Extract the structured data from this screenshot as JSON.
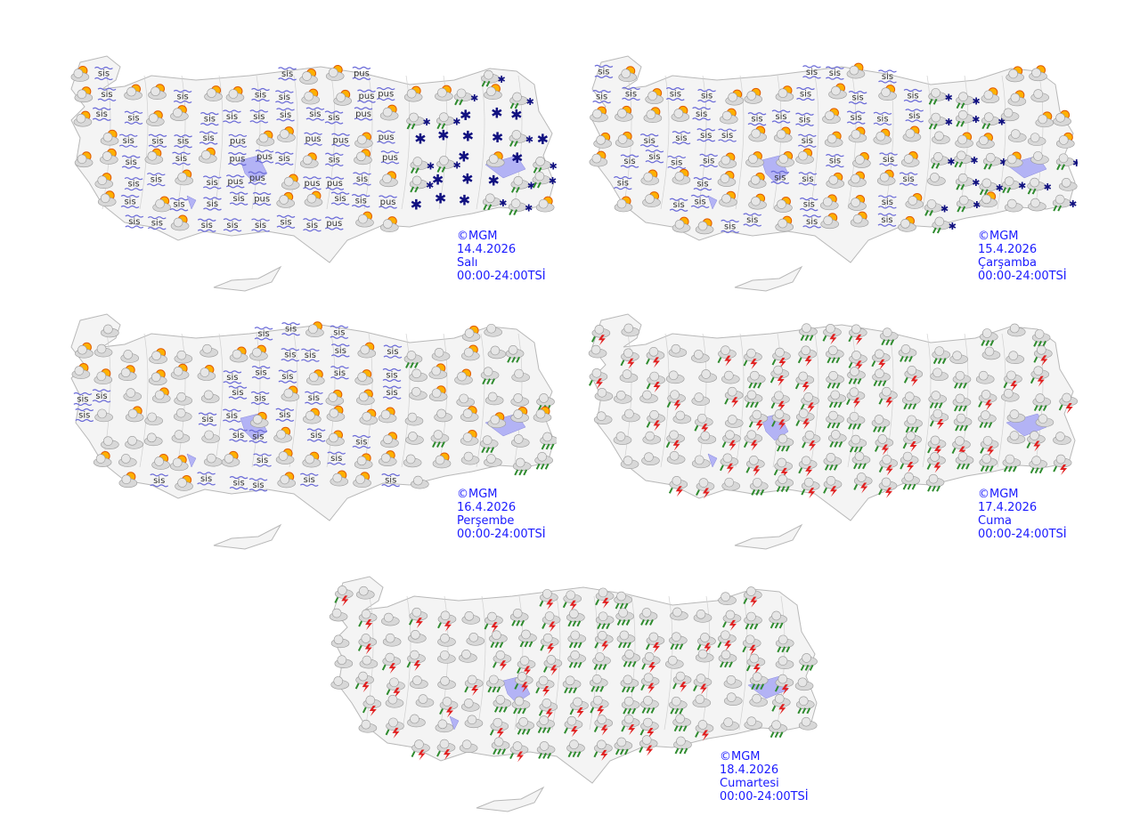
{
  "colors": {
    "land": "#f4f4f4",
    "border": "#b8b8b8",
    "lake": "#b3b3f5",
    "label": "#1a1aff",
    "sun": "#ffb000",
    "cloud": "#c8c8c8",
    "rain": "#2e8b2e",
    "lightning": "#e02020",
    "snow": "#101080",
    "fog": "#6a6ad8"
  },
  "maps": [
    {
      "copyright": "©MGM",
      "date": "14.4.2026",
      "day": "Salı",
      "period": "00:00-24:00TSİ",
      "regions": {
        "west": [
          "partly-cloudy",
          "fog"
        ],
        "central": [
          "fog",
          "mist",
          "partly-cloudy"
        ],
        "east": [
          "snow",
          "rain-snow",
          "partly-cloudy"
        ]
      },
      "fog_text": "sis",
      "mist_text": "pus"
    },
    {
      "copyright": "©MGM",
      "date": "15.4.2026",
      "day": "Çarşamba",
      "period": "00:00-24:00TSİ",
      "regions": {
        "west": [
          "partly-cloudy",
          "fog"
        ],
        "central": [
          "partly-cloudy",
          "fog"
        ],
        "east": [
          "partly-cloudy",
          "cloudy",
          "rain-snow"
        ]
      },
      "fog_text": "sis",
      "mist_text": "pus"
    },
    {
      "copyright": "©MGM",
      "date": "16.4.2026",
      "day": "Perşembe",
      "period": "00:00-24:00TSİ",
      "regions": {
        "west": [
          "partly-cloudy",
          "fog",
          "cloudy"
        ],
        "central": [
          "partly-cloudy",
          "fog"
        ],
        "east": [
          "partly-cloudy",
          "cloudy",
          "rain"
        ]
      },
      "fog_text": "sis",
      "mist_text": "pus"
    },
    {
      "copyright": "©MGM",
      "date": "17.4.2026",
      "day": "Cuma",
      "period": "00:00-24:00TSİ",
      "regions": {
        "west": [
          "thunderstorm",
          "cloudy"
        ],
        "central": [
          "thunderstorm",
          "rain"
        ],
        "east": [
          "rain",
          "cloudy",
          "thunderstorm"
        ]
      },
      "fog_text": "sis",
      "mist_text": "pus"
    },
    {
      "copyright": "©MGM",
      "date": "18.4.2026",
      "day": "Cumartesi",
      "period": "00:00-24:00TSİ",
      "regions": {
        "west": [
          "thunderstorm",
          "cloudy"
        ],
        "central": [
          "thunderstorm",
          "rain"
        ],
        "east": [
          "rain",
          "thunderstorm",
          "cloudy"
        ]
      },
      "fog_text": "sis",
      "mist_text": "pus"
    }
  ]
}
